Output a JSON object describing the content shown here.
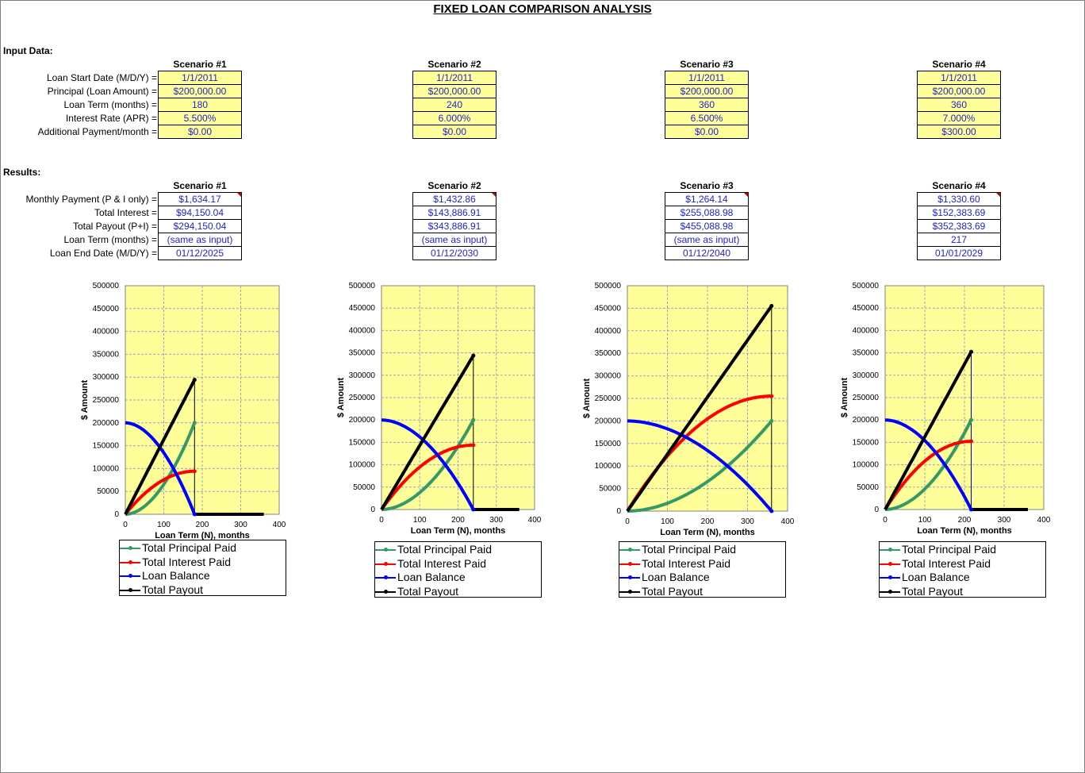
{
  "title": "FIXED LOAN COMPARISON ANALYSIS",
  "input_section": "Input Data:",
  "results_section": "Results:",
  "input_labels": [
    "Loan Start Date (M/D/Y) =",
    "Principal (Loan Amount) =",
    "Loan Term (months) =",
    "Interest Rate (APR) =",
    "Additional Payment/month ="
  ],
  "result_labels": [
    "Monthly Payment (P & I only) =",
    "Total Interest =",
    "Total Payout (P+I) =",
    "Loan Term (months) =",
    "Loan End Date (M/D/Y) ="
  ],
  "scenarios": [
    {
      "name": "Scenario #1",
      "inputs": [
        "1/1/2011",
        "$200,000.00",
        "180",
        "5.500%",
        "$0.00"
      ],
      "results": [
        "$1,634.17",
        "$94,150.04",
        "$294,150.04",
        "(same as input)",
        "01/12/2025"
      ]
    },
    {
      "name": "Scenario #2",
      "inputs": [
        "1/1/2011",
        "$200,000.00",
        "240",
        "6.000%",
        "$0.00"
      ],
      "results": [
        "$1,432.86",
        "$143,886.91",
        "$343,886.91",
        "(same as input)",
        "01/12/2030"
      ]
    },
    {
      "name": "Scenario #3",
      "inputs": [
        "1/1/2011",
        "$200,000.00",
        "360",
        "6.500%",
        "$0.00"
      ],
      "results": [
        "$1,264.14",
        "$255,088.98",
        "$455,088.98",
        "(same as input)",
        "01/12/2040"
      ]
    },
    {
      "name": "Scenario #4",
      "inputs": [
        "1/1/2011",
        "$200,000.00",
        "360",
        "7.000%",
        "$300.00"
      ],
      "results": [
        "$1,330.60",
        "$152,383.69",
        "$352,383.69",
        "217",
        "01/01/2029"
      ]
    }
  ],
  "chart_common": {
    "ylabel": "$ Amount",
    "xlabel": "Loan Term (N), months",
    "y_ticks": [
      "0",
      "50000",
      "100000",
      "150000",
      "200000",
      "250000",
      "300000",
      "350000",
      "400000",
      "450000",
      "500000"
    ],
    "x_ticks": [
      "0",
      "100",
      "200",
      "300",
      "400"
    ],
    "legend": [
      "Total Principal Paid",
      "Total Interest Paid",
      "Loan Balance",
      "Total Payout"
    ],
    "colors": {
      "principal": "#339966",
      "interest": "#ff0000",
      "balance": "#0000ff",
      "payout": "#000000",
      "plot_bg": "#ffff99",
      "grid": "#a0a0c8"
    }
  },
  "chart_data": [
    {
      "type": "line",
      "xlim": [
        0,
        400
      ],
      "ylim": [
        0,
        500000
      ],
      "term": 180,
      "x_extent": 360,
      "principal": 200000,
      "total_interest": 94150.04,
      "total_payout": 294150.04
    },
    {
      "type": "line",
      "xlim": [
        0,
        400
      ],
      "ylim": [
        0,
        500000
      ],
      "term": 240,
      "x_extent": 360,
      "principal": 200000,
      "total_interest": 143886.91,
      "total_payout": 343886.91
    },
    {
      "type": "line",
      "xlim": [
        0,
        400
      ],
      "ylim": [
        0,
        500000
      ],
      "term": 360,
      "x_extent": 360,
      "principal": 200000,
      "total_interest": 255088.98,
      "total_payout": 455088.98
    },
    {
      "type": "line",
      "xlim": [
        0,
        400
      ],
      "ylim": [
        0,
        500000
      ],
      "term": 217,
      "x_extent": 360,
      "principal": 200000,
      "total_interest": 152383.69,
      "total_payout": 352383.69
    }
  ]
}
